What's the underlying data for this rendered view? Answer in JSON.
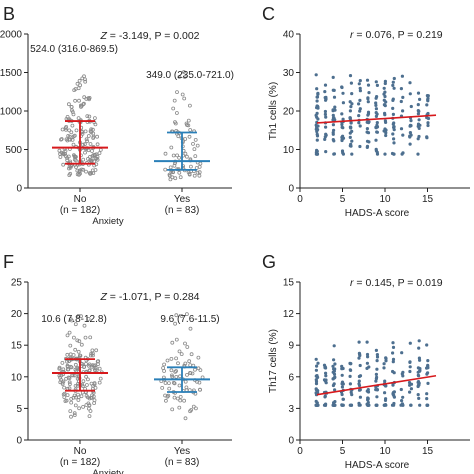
{
  "colors": {
    "red": "#d7191c",
    "blue": "#2a7fb8",
    "dot": "#4d6f8f",
    "axis": "#222222"
  },
  "chart_data": [
    {
      "panel": "B",
      "type": "scatter",
      "title": "",
      "annotation": "Z = -3.149, P = 0.002",
      "categories": [
        "No",
        "Yes"
      ],
      "category_n": [
        "(n = 182)",
        "(n = 83)"
      ],
      "xlabel": "Anxiety",
      "ylabel": "",
      "ylim": [
        0,
        2000
      ],
      "yticks": [
        "0",
        "500",
        "1000",
        "1500",
        "2000"
      ],
      "median_labels": [
        "524.0 (316.0-869.5)",
        "349.0 (235.0-721.0)"
      ],
      "medians": [
        524,
        349
      ],
      "q1": [
        316,
        235
      ],
      "q3": [
        869.5,
        721
      ],
      "series_colors": [
        "red",
        "blue"
      ]
    },
    {
      "panel": "C",
      "type": "scatter",
      "title": "",
      "annotation": "r = 0.076, P = 0.219",
      "xlabel": "HADS-A score",
      "ylabel": "Th1 cells (%)",
      "xlim": [
        0,
        20
      ],
      "ylim": [
        0,
        40
      ],
      "xticks": [
        "0",
        "5",
        "10",
        "15"
      ],
      "yticks": [
        "0",
        "10",
        "20",
        "30",
        "40"
      ],
      "regression": {
        "x": [
          2,
          16
        ],
        "y": [
          16.9,
          18.9
        ]
      }
    },
    {
      "panel": "F",
      "type": "scatter",
      "title": "",
      "annotation": "Z = -1.071, P = 0.284",
      "categories": [
        "No",
        "Yes"
      ],
      "category_n": [
        "(n = 182)",
        "(n = 83)"
      ],
      "xlabel": "Anxiety",
      "ylabel": "",
      "ylim": [
        0,
        25
      ],
      "yticks": [
        "0",
        "5",
        "10",
        "15",
        "20",
        "25"
      ],
      "median_labels": [
        "10.6 (7.8-12.8)",
        "9.6 (7.6-11.5)"
      ],
      "medians": [
        10.6,
        9.6
      ],
      "q1": [
        7.8,
        7.6
      ],
      "q3": [
        12.8,
        11.5
      ],
      "series_colors": [
        "red",
        "blue"
      ]
    },
    {
      "panel": "G",
      "type": "scatter",
      "title": "",
      "annotation": "r = 0.145, P = 0.019",
      "xlabel": "HADS-A score",
      "ylabel": "Th17 cells (%)",
      "xlim": [
        0,
        20
      ],
      "ylim": [
        0,
        15
      ],
      "xticks": [
        "0",
        "5",
        "10",
        "15"
      ],
      "yticks": [
        "0",
        "3",
        "6",
        "9",
        "12",
        "15"
      ],
      "regression": {
        "x": [
          2,
          16
        ],
        "y": [
          4.3,
          6.1
        ]
      }
    }
  ]
}
